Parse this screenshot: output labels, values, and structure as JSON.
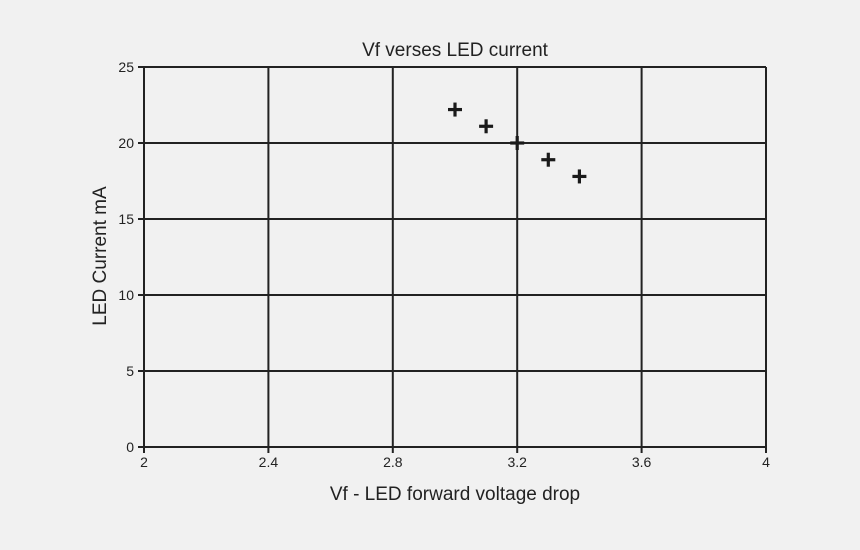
{
  "chart_data": {
    "type": "scatter",
    "title": "Vf verses LED current",
    "xlabel": "Vf - LED forward voltage drop",
    "ylabel": "LED Current mA",
    "xlim": [
      2,
      4
    ],
    "ylim": [
      0,
      25
    ],
    "x_ticks": [
      2,
      2.4,
      2.8,
      3.2,
      3.6,
      4
    ],
    "x_tick_labels": [
      "2",
      "2.4",
      "2.8",
      "3.2",
      "3.6",
      "4"
    ],
    "y_ticks": [
      0,
      5,
      10,
      15,
      20,
      25
    ],
    "y_tick_labels": [
      "0",
      "5",
      "10",
      "15",
      "20",
      "25"
    ],
    "grid": true,
    "marker": "plus",
    "series": [
      {
        "x": [
          3.0,
          3.1,
          3.2,
          3.3,
          3.4
        ],
        "y": [
          22.2,
          21.1,
          20.0,
          18.9,
          17.8
        ]
      }
    ],
    "colors": {
      "background": "#f1f1f1",
      "grid": "#222222",
      "marker": "#1a1a1a",
      "text": "#222222"
    }
  }
}
